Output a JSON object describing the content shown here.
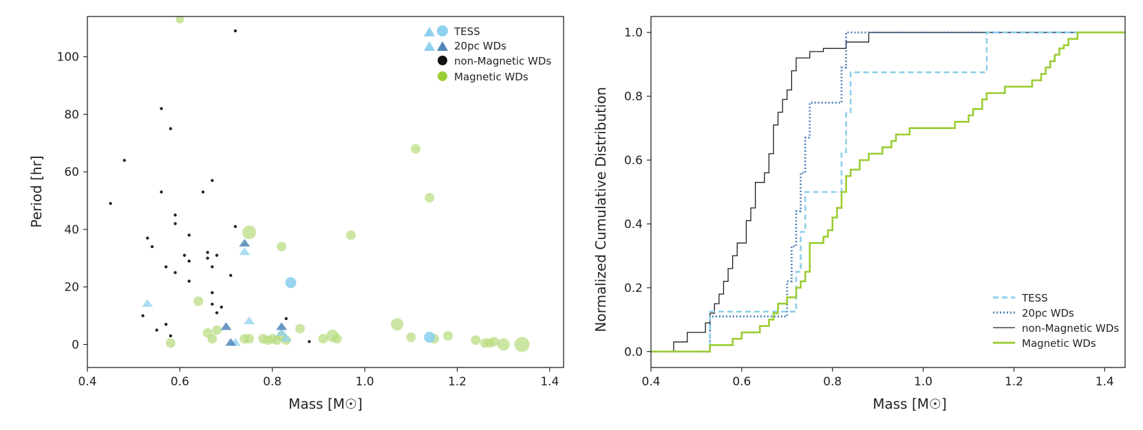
{
  "colors": {
    "tess": "#8fd0ee",
    "tess_line": "#8ccfe8",
    "wd20": "#4f86b8",
    "wd20_line": "#4d7fb5",
    "nonmag": "#1a1a1a",
    "mag": "#b5dc7c",
    "mag_line": "#9acd32"
  },
  "chart_data": [
    {
      "type": "scatter",
      "xlabel": "Mass [M☉]",
      "ylabel": "Period [hr]",
      "xlim": [
        0.4,
        1.43
      ],
      "ylim": [
        -8,
        114
      ],
      "xticks": [
        0.4,
        0.6,
        0.8,
        1.0,
        1.2,
        1.4
      ],
      "xtick_labels": [
        "0.4",
        "0.6",
        "0.8",
        "1.0",
        "1.2",
        "1.4"
      ],
      "yticks": [
        0,
        20,
        40,
        60,
        80,
        100
      ],
      "ytick_labels": [
        "0",
        "20",
        "40",
        "60",
        "80",
        "100"
      ],
      "legend": {
        "location": "upper right",
        "entries": [
          "TESS",
          "20pc WDs",
          "non-Magnetic WDs",
          "Magnetic WDs"
        ]
      },
      "series": [
        {
          "name": "non-Magnetic WDs",
          "marker": "dot",
          "points": [
            [
              0.45,
              49
            ],
            [
              0.48,
              64
            ],
            [
              0.52,
              10
            ],
            [
              0.53,
              37
            ],
            [
              0.54,
              34
            ],
            [
              0.55,
              5
            ],
            [
              0.56,
              53
            ],
            [
              0.56,
              82
            ],
            [
              0.57,
              27
            ],
            [
              0.57,
              7
            ],
            [
              0.58,
              75
            ],
            [
              0.58,
              3
            ],
            [
              0.59,
              42
            ],
            [
              0.59,
              45
            ],
            [
              0.59,
              25
            ],
            [
              0.61,
              31
            ],
            [
              0.62,
              29
            ],
            [
              0.62,
              38
            ],
            [
              0.62,
              22
            ],
            [
              0.65,
              53
            ],
            [
              0.66,
              32
            ],
            [
              0.66,
              30
            ],
            [
              0.67,
              57
            ],
            [
              0.67,
              27
            ],
            [
              0.67,
              18
            ],
            [
              0.67,
              14
            ],
            [
              0.68,
              11
            ],
            [
              0.68,
              31
            ],
            [
              0.69,
              13
            ],
            [
              0.71,
              24
            ],
            [
              0.72,
              109
            ],
            [
              0.72,
              41
            ],
            [
              0.83,
              9
            ],
            [
              0.88,
              1
            ]
          ]
        },
        {
          "name": "Magnetic WDs",
          "marker": "circle",
          "points": [
            [
              0.6,
              113,
              6
            ],
            [
              0.58,
              0.5,
              7
            ],
            [
              0.64,
              15,
              7
            ],
            [
              0.66,
              4,
              7
            ],
            [
              0.67,
              2,
              7
            ],
            [
              0.68,
              5,
              7
            ],
            [
              0.74,
              2,
              7
            ],
            [
              0.75,
              39,
              10
            ],
            [
              0.75,
              2,
              7
            ],
            [
              0.78,
              2,
              7
            ],
            [
              0.79,
              1.5,
              7
            ],
            [
              0.8,
              2,
              7
            ],
            [
              0.81,
              1.5,
              7
            ],
            [
              0.82,
              34,
              7
            ],
            [
              0.82,
              3,
              7
            ],
            [
              0.83,
              1.5,
              7
            ],
            [
              0.86,
              5.5,
              7
            ],
            [
              0.91,
              2,
              7
            ],
            [
              0.93,
              3,
              9
            ],
            [
              0.94,
              2,
              7
            ],
            [
              0.97,
              38,
              7
            ],
            [
              1.07,
              7,
              9
            ],
            [
              1.1,
              2.5,
              7
            ],
            [
              1.11,
              68,
              7
            ],
            [
              1.14,
              51,
              7
            ],
            [
              1.15,
              2,
              7
            ],
            [
              1.18,
              3,
              7
            ],
            [
              1.24,
              1.5,
              7
            ],
            [
              1.26,
              0.5,
              7
            ],
            [
              1.27,
              0.5,
              7
            ],
            [
              1.28,
              1,
              7
            ],
            [
              1.3,
              0,
              9
            ],
            [
              1.34,
              0,
              11
            ]
          ]
        },
        {
          "name": "TESS",
          "marker": "triangle-and-circle",
          "points": [
            [
              0.53,
              14,
              "triangle"
            ],
            [
              0.72,
              0.5,
              "triangle"
            ],
            [
              0.74,
              32,
              "triangle"
            ],
            [
              0.75,
              8,
              "triangle"
            ],
            [
              0.82,
              4,
              "triangle"
            ],
            [
              0.83,
              2,
              "triangle"
            ],
            [
              0.84,
              21.5,
              "circle"
            ],
            [
              1.14,
              2.5,
              "circle"
            ]
          ]
        },
        {
          "name": "20pc WDs",
          "marker": "triangle",
          "points": [
            [
              0.7,
              6
            ],
            [
              0.71,
              0.5
            ],
            [
              0.74,
              35
            ],
            [
              0.82,
              6
            ]
          ]
        }
      ]
    },
    {
      "type": "line",
      "step": true,
      "xlabel": "Mass [M☉]",
      "ylabel": "Normalized Cumulative Distribution",
      "xlim": [
        0.4,
        1.445
      ],
      "ylim": [
        -0.05,
        1.05
      ],
      "xticks": [
        0.4,
        0.6,
        0.8,
        1.0,
        1.2,
        1.4
      ],
      "xtick_labels": [
        "0.4",
        "0.6",
        "0.8",
        "1.0",
        "1.2",
        "1.4"
      ],
      "yticks": [
        0.0,
        0.2,
        0.4,
        0.6,
        0.8,
        1.0
      ],
      "ytick_labels": [
        "0.0",
        "0.2",
        "0.4",
        "0.6",
        "0.8",
        "1.0"
      ],
      "legend": {
        "location": "lower right",
        "entries": [
          "TESS",
          "20pc WDs",
          "non-Magnetic WDs",
          "Magnetic WDs"
        ]
      },
      "series": [
        {
          "name": "non-Magnetic WDs",
          "style": "solid-thin",
          "x": [
            0.4,
            0.45,
            0.48,
            0.52,
            0.53,
            0.54,
            0.55,
            0.56,
            0.57,
            0.58,
            0.59,
            0.61,
            0.62,
            0.63,
            0.65,
            0.66,
            0.67,
            0.68,
            0.69,
            0.7,
            0.71,
            0.72,
            0.75,
            0.78,
            0.83,
            0.88,
            1.445
          ],
          "y": [
            0.0,
            0.03,
            0.06,
            0.09,
            0.12,
            0.15,
            0.18,
            0.22,
            0.26,
            0.3,
            0.34,
            0.41,
            0.45,
            0.53,
            0.56,
            0.62,
            0.71,
            0.75,
            0.79,
            0.82,
            0.88,
            0.92,
            0.94,
            0.95,
            0.97,
            1.0,
            1.0
          ]
        },
        {
          "name": "20pc WDs",
          "style": "dotted",
          "x": [
            0.4,
            0.53,
            0.7,
            0.71,
            0.72,
            0.73,
            0.74,
            0.75,
            0.82,
            0.83,
            1.445
          ],
          "y": [
            0.0,
            0.11,
            0.22,
            0.33,
            0.44,
            0.56,
            0.67,
            0.78,
            0.89,
            1.0,
            1.0
          ]
        },
        {
          "name": "TESS",
          "style": "dashed",
          "x": [
            0.4,
            0.53,
            0.72,
            0.73,
            0.74,
            0.75,
            0.82,
            0.83,
            0.84,
            1.14,
            1.445
          ],
          "y": [
            0.0,
            0.125,
            0.25,
            0.375,
            0.5,
            0.5,
            0.625,
            0.75,
            0.875,
            1.0,
            1.0
          ]
        },
        {
          "name": "Magnetic WDs",
          "style": "solid-thick",
          "x": [
            0.4,
            0.53,
            0.58,
            0.6,
            0.64,
            0.66,
            0.67,
            0.68,
            0.7,
            0.72,
            0.73,
            0.74,
            0.75,
            0.78,
            0.79,
            0.8,
            0.81,
            0.82,
            0.83,
            0.84,
            0.86,
            0.88,
            0.91,
            0.93,
            0.94,
            0.97,
            1.07,
            1.1,
            1.11,
            1.13,
            1.14,
            1.15,
            1.18,
            1.24,
            1.26,
            1.27,
            1.28,
            1.29,
            1.3,
            1.31,
            1.32,
            1.34,
            1.445
          ],
          "y": [
            0.0,
            0.02,
            0.04,
            0.06,
            0.08,
            0.1,
            0.12,
            0.15,
            0.17,
            0.2,
            0.22,
            0.25,
            0.34,
            0.36,
            0.38,
            0.42,
            0.45,
            0.5,
            0.55,
            0.57,
            0.6,
            0.62,
            0.64,
            0.66,
            0.68,
            0.7,
            0.72,
            0.74,
            0.76,
            0.79,
            0.81,
            0.81,
            0.83,
            0.85,
            0.87,
            0.89,
            0.91,
            0.93,
            0.95,
            0.96,
            0.98,
            1.0,
            1.0
          ]
        }
      ]
    }
  ]
}
